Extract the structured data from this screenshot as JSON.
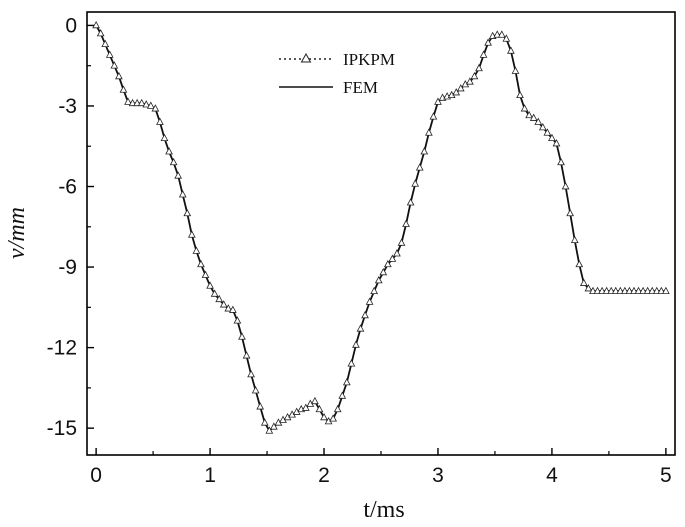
{
  "chart_data": {
    "type": "line",
    "xlabel": "t/ms",
    "ylabel": "v/mm",
    "xlim": [
      -0.08,
      5.08
    ],
    "ylim": [
      -16.0,
      0.5
    ],
    "xticks": [
      0,
      1,
      2,
      3,
      4,
      5
    ],
    "yticks": [
      0,
      -3,
      -6,
      -9,
      -12,
      -15
    ],
    "xtick_labels": [
      "0",
      "1",
      "2",
      "3",
      "4",
      "5"
    ],
    "ytick_labels": [
      "0",
      "-3",
      "-6",
      "-9",
      "-12",
      "-15"
    ],
    "legend_position": "top-center",
    "grid": false,
    "series": [
      {
        "name": "IPKPM",
        "style": "dotted-with-triangle-markers",
        "x": [
          0,
          0.04,
          0.08,
          0.12,
          0.16,
          0.2,
          0.24,
          0.28,
          0.32,
          0.36,
          0.4,
          0.44,
          0.48,
          0.52,
          0.56,
          0.6,
          0.64,
          0.68,
          0.72,
          0.76,
          0.8,
          0.84,
          0.88,
          0.92,
          0.96,
          1.0,
          1.04,
          1.08,
          1.12,
          1.16,
          1.2,
          1.24,
          1.28,
          1.32,
          1.36,
          1.4,
          1.44,
          1.48,
          1.52,
          1.56,
          1.6,
          1.64,
          1.68,
          1.72,
          1.76,
          1.8,
          1.84,
          1.88,
          1.92,
          1.96,
          2.0,
          2.04,
          2.08,
          2.12,
          2.16,
          2.2,
          2.24,
          2.28,
          2.32,
          2.36,
          2.4,
          2.44,
          2.48,
          2.52,
          2.56,
          2.6,
          2.64,
          2.68,
          2.72,
          2.76,
          2.8,
          2.84,
          2.88,
          2.92,
          2.96,
          3.0,
          3.04,
          3.08,
          3.12,
          3.16,
          3.2,
          3.24,
          3.28,
          3.32,
          3.36,
          3.4,
          3.44,
          3.48,
          3.52,
          3.56,
          3.6,
          3.64,
          3.68,
          3.72,
          3.76,
          3.8,
          3.84,
          3.88,
          3.92,
          3.96,
          4.0,
          4.04,
          4.08,
          4.12,
          4.16,
          4.2,
          4.24,
          4.28,
          4.32,
          4.36,
          4.4,
          4.44,
          4.48,
          4.52,
          4.56,
          4.6,
          4.64,
          4.68,
          4.72,
          4.76,
          4.8,
          4.84,
          4.88,
          4.92,
          4.96,
          5.0
        ],
        "values": [
          0.0,
          -0.3,
          -0.7,
          -1.1,
          -1.5,
          -1.9,
          -2.4,
          -2.85,
          -2.9,
          -2.9,
          -2.9,
          -2.95,
          -3.0,
          -3.1,
          -3.6,
          -4.2,
          -4.7,
          -5.1,
          -5.6,
          -6.3,
          -7.0,
          -7.8,
          -8.4,
          -8.9,
          -9.3,
          -9.7,
          -10.0,
          -10.2,
          -10.4,
          -10.55,
          -10.6,
          -11.0,
          -11.6,
          -12.3,
          -13.0,
          -13.6,
          -14.2,
          -14.8,
          -15.1,
          -14.95,
          -14.8,
          -14.7,
          -14.6,
          -14.5,
          -14.4,
          -14.3,
          -14.25,
          -14.1,
          -14.0,
          -14.3,
          -14.6,
          -14.75,
          -14.65,
          -14.3,
          -13.8,
          -13.3,
          -12.6,
          -11.9,
          -11.3,
          -10.8,
          -10.3,
          -9.9,
          -9.5,
          -9.2,
          -8.9,
          -8.7,
          -8.5,
          -8.1,
          -7.4,
          -6.6,
          -5.9,
          -5.3,
          -4.7,
          -4.0,
          -3.4,
          -2.85,
          -2.7,
          -2.65,
          -2.6,
          -2.5,
          -2.35,
          -2.2,
          -2.1,
          -1.9,
          -1.6,
          -1.1,
          -0.65,
          -0.4,
          -0.35,
          -0.35,
          -0.5,
          -0.95,
          -1.7,
          -2.6,
          -3.1,
          -3.35,
          -3.45,
          -3.6,
          -3.8,
          -4.0,
          -4.2,
          -4.4,
          -5.1,
          -6.0,
          -7.0,
          -8.0,
          -8.9,
          -9.6,
          -9.8,
          -9.9,
          -9.9,
          -9.9,
          -9.9,
          -9.9,
          -9.9,
          -9.9,
          -9.9,
          -9.9,
          -9.9,
          -9.9,
          -9.9,
          -9.9,
          -9.9,
          -9.9,
          -9.9,
          -9.9
        ]
      },
      {
        "name": "FEM",
        "style": "solid",
        "x": [
          0,
          0.04,
          0.08,
          0.12,
          0.16,
          0.2,
          0.24,
          0.28,
          0.32,
          0.36,
          0.4,
          0.44,
          0.48,
          0.52,
          0.56,
          0.6,
          0.64,
          0.68,
          0.72,
          0.76,
          0.8,
          0.84,
          0.88,
          0.92,
          0.96,
          1.0,
          1.04,
          1.08,
          1.12,
          1.16,
          1.2,
          1.24,
          1.28,
          1.32,
          1.36,
          1.4,
          1.44,
          1.48,
          1.52,
          1.56,
          1.6,
          1.64,
          1.68,
          1.72,
          1.76,
          1.8,
          1.84,
          1.88,
          1.92,
          1.96,
          2.0,
          2.04,
          2.08,
          2.12,
          2.16,
          2.2,
          2.24,
          2.28,
          2.32,
          2.36,
          2.4,
          2.44,
          2.48,
          2.52,
          2.56,
          2.6,
          2.64,
          2.68,
          2.72,
          2.76,
          2.8,
          2.84,
          2.88,
          2.92,
          2.96,
          3.0,
          3.04,
          3.08,
          3.12,
          3.16,
          3.2,
          3.24,
          3.28,
          3.32,
          3.36,
          3.4,
          3.44,
          3.48,
          3.52,
          3.56,
          3.6,
          3.64,
          3.68,
          3.72,
          3.76,
          3.8,
          3.84,
          3.88,
          3.92,
          3.96,
          4.0,
          4.04,
          4.08,
          4.12,
          4.16,
          4.2,
          4.24,
          4.28,
          4.32,
          4.36,
          4.4,
          4.44,
          4.48,
          4.52,
          4.56,
          4.6,
          4.64,
          4.68,
          4.72,
          4.76,
          4.8,
          4.84,
          4.88,
          4.92,
          4.96,
          5.0
        ],
        "values": [
          0.0,
          -0.3,
          -0.7,
          -1.1,
          -1.5,
          -1.9,
          -2.4,
          -2.85,
          -2.9,
          -2.9,
          -2.9,
          -2.95,
          -3.0,
          -3.1,
          -3.6,
          -4.2,
          -4.7,
          -5.1,
          -5.6,
          -6.3,
          -7.0,
          -7.8,
          -8.4,
          -8.9,
          -9.3,
          -9.7,
          -10.0,
          -10.2,
          -10.4,
          -10.55,
          -10.6,
          -11.0,
          -11.6,
          -12.3,
          -13.0,
          -13.6,
          -14.2,
          -14.8,
          -15.1,
          -14.95,
          -14.8,
          -14.7,
          -14.6,
          -14.5,
          -14.4,
          -14.3,
          -14.25,
          -14.1,
          -14.0,
          -14.3,
          -14.6,
          -14.75,
          -14.65,
          -14.3,
          -13.8,
          -13.3,
          -12.6,
          -11.9,
          -11.3,
          -10.8,
          -10.3,
          -9.9,
          -9.5,
          -9.2,
          -8.9,
          -8.7,
          -8.5,
          -8.1,
          -7.4,
          -6.6,
          -5.9,
          -5.3,
          -4.7,
          -4.0,
          -3.4,
          -2.85,
          -2.7,
          -2.65,
          -2.6,
          -2.5,
          -2.35,
          -2.2,
          -2.1,
          -1.9,
          -1.6,
          -1.1,
          -0.65,
          -0.4,
          -0.35,
          -0.35,
          -0.5,
          -0.95,
          -1.7,
          -2.6,
          -3.1,
          -3.35,
          -3.45,
          -3.6,
          -3.8,
          -4.0,
          -4.2,
          -4.4,
          -5.1,
          -6.0,
          -7.0,
          -8.0,
          -8.9,
          -9.6,
          -9.8,
          -9.9,
          -9.9,
          -9.9,
          -9.9,
          -9.9,
          -9.9,
          -9.9,
          -9.9,
          -9.9,
          -9.9,
          -9.9,
          -9.9,
          -9.9,
          -9.9,
          -9.9,
          -9.9,
          -9.9
        ]
      }
    ]
  },
  "colors": {
    "line": "#111111",
    "marker_stroke": "#222222",
    "marker_fill": "#ffffff",
    "background": "#ffffff"
  }
}
